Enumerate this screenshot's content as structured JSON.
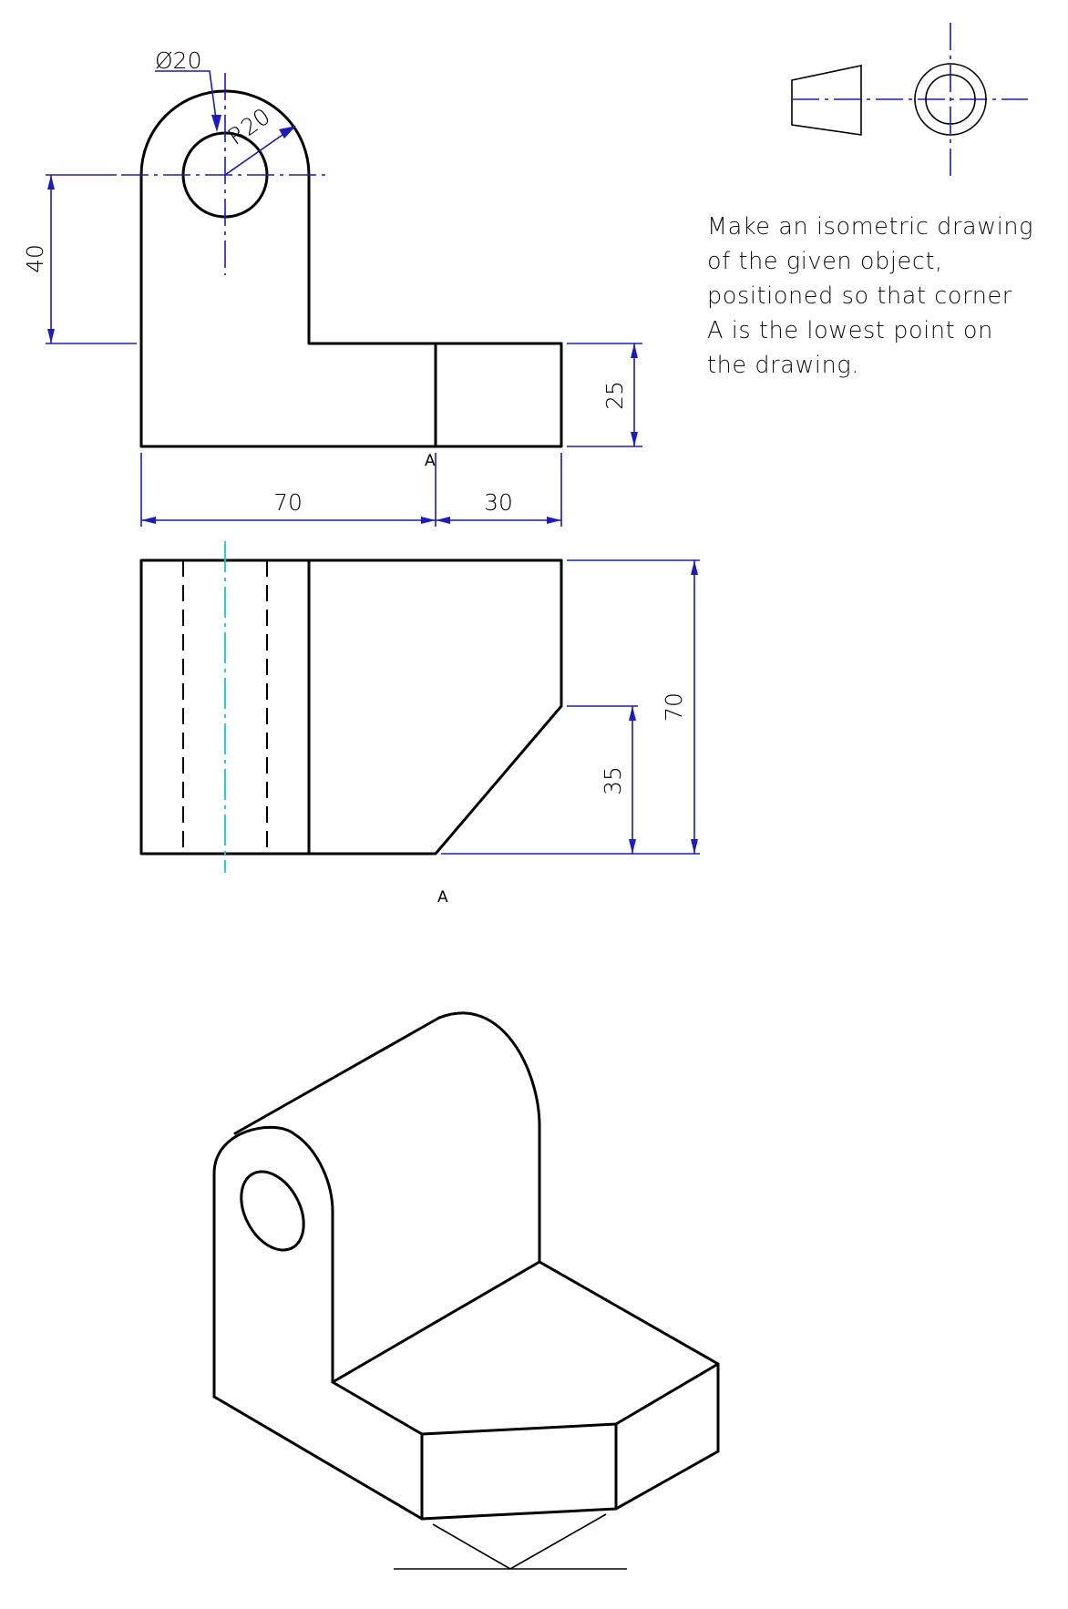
{
  "instructions": {
    "lines": [
      "Make an isometric drawing",
      "of the given object,",
      "positioned so that corner",
      "A is the lowest point on",
      "the drawing."
    ]
  },
  "front_view": {
    "diameter_label": "Ø20",
    "radius_label": "R20",
    "dim_40": "40",
    "dim_25": "25",
    "dim_70": "70",
    "dim_30": "30",
    "corner_label": "A"
  },
  "top_view": {
    "dim_70": "70",
    "dim_35": "35",
    "corner_label": "A"
  },
  "colors": {
    "object_lines": "#000000",
    "dimension_lines": "#1a1acc",
    "center_line_top_view": "#17c7d4"
  }
}
